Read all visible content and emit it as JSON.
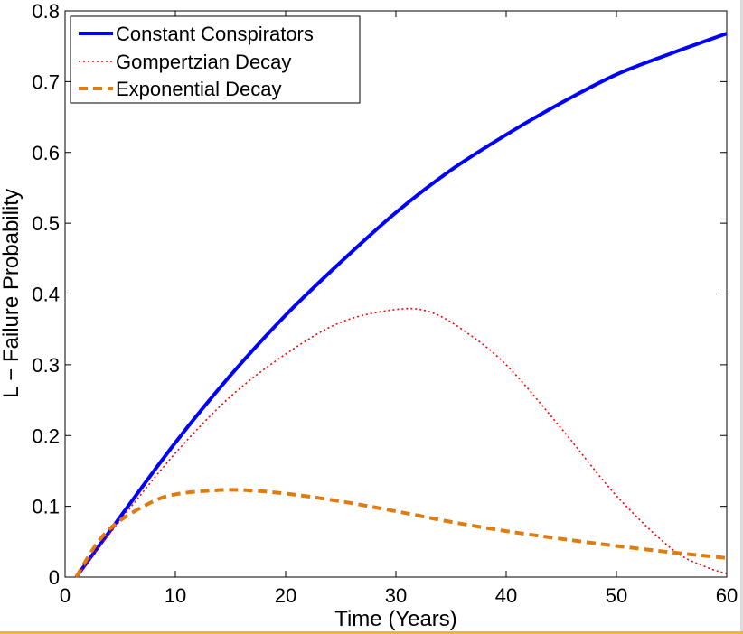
{
  "chart_data": {
    "type": "line",
    "xlabel": "Time (Years)",
    "ylabel": "L − Failure Probability",
    "xlim": [
      0,
      60
    ],
    "ylim": [
      0,
      0.8
    ],
    "xticks": [
      0,
      10,
      20,
      30,
      40,
      50,
      60
    ],
    "yticks": [
      0,
      0.1,
      0.2,
      0.3,
      0.4,
      0.5,
      0.6,
      0.7,
      0.8
    ],
    "xtick_labels": [
      "0",
      "10",
      "20",
      "30",
      "40",
      "50",
      "60"
    ],
    "ytick_labels": [
      "0",
      "0.1",
      "0.2",
      "0.3",
      "0.4",
      "0.5",
      "0.6",
      "0.7",
      "0.8"
    ],
    "grid": false,
    "legend_position": "top-left",
    "series": [
      {
        "name": "Constant Conspirators",
        "color": "#0000ff",
        "style": "solid",
        "x": [
          1,
          5,
          10,
          15,
          20,
          25,
          30,
          35,
          40,
          45,
          50,
          55,
          60
        ],
        "y": [
          0,
          0.085,
          0.19,
          0.285,
          0.37,
          0.445,
          0.515,
          0.575,
          0.625,
          0.67,
          0.71,
          0.74,
          0.768
        ]
      },
      {
        "name": "Gompertzian Decay",
        "color": "#ff0000",
        "style": "dotted",
        "x": [
          1,
          5,
          10,
          15,
          20,
          25,
          30,
          33,
          36,
          40,
          45,
          50,
          55,
          58,
          60
        ],
        "y": [
          0,
          0.08,
          0.175,
          0.255,
          0.315,
          0.36,
          0.378,
          0.375,
          0.35,
          0.3,
          0.21,
          0.115,
          0.04,
          0.015,
          0.005
        ]
      },
      {
        "name": "Exponential Decay",
        "color": "#e07b0f",
        "style": "dashed",
        "x": [
          1,
          3,
          5,
          8,
          10,
          13,
          16,
          20,
          25,
          30,
          35,
          40,
          45,
          50,
          55,
          60
        ],
        "y": [
          0,
          0.05,
          0.08,
          0.107,
          0.117,
          0.122,
          0.123,
          0.118,
          0.107,
          0.093,
          0.078,
          0.065,
          0.054,
          0.044,
          0.035,
          0.027
        ]
      }
    ]
  }
}
